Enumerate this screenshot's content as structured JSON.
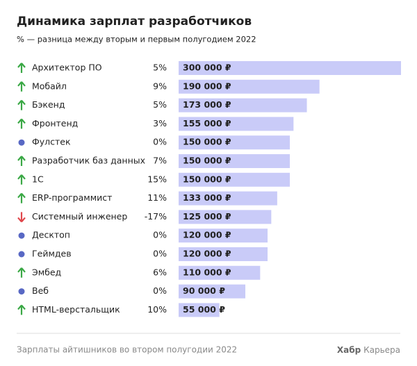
{
  "chart_data": {
    "type": "bar",
    "title": "Динамика зарплат разработчиков",
    "subtitle": "% — разница между вторым и первым полугодием 2022",
    "categories": [
      "Архитектор ПО",
      "Мобайл",
      "Бэкенд",
      "Фронтенд",
      "Фулстек",
      "Разработчик баз данных",
      "1С",
      "ERP-программист",
      "Системный инженер",
      "Десктоп",
      "Геймдев",
      "Эмбед",
      "Веб",
      "HTML-верстальщик"
    ],
    "values": [
      300000,
      190000,
      173000,
      155000,
      150000,
      150000,
      150000,
      133000,
      125000,
      120000,
      120000,
      110000,
      90000,
      55000
    ],
    "value_labels": [
      "300 000 ₽",
      "190 000 ₽",
      "173 000 ₽",
      "155 000 ₽",
      "150 000 ₽",
      "150 000 ₽",
      "150 000 ₽",
      "133 000 ₽",
      "125 000 ₽",
      "120 000 ₽",
      "120 000 ₽",
      "110 000 ₽",
      "90 000 ₽",
      "55 000 ₽"
    ],
    "changes": [
      5,
      9,
      5,
      3,
      0,
      7,
      15,
      11,
      -17,
      0,
      0,
      6,
      0,
      10
    ],
    "change_labels": [
      "5%",
      "9%",
      "5%",
      "3%",
      "0%",
      "7%",
      "15%",
      "11%",
      "-17%",
      "0%",
      "0%",
      "6%",
      "0%",
      "10%"
    ],
    "color": "#c9cbf8",
    "source": "Зарплаты айтишников во втором полугодии 2022",
    "brand": "Хабр",
    "brand_suffix": "Карьера"
  }
}
